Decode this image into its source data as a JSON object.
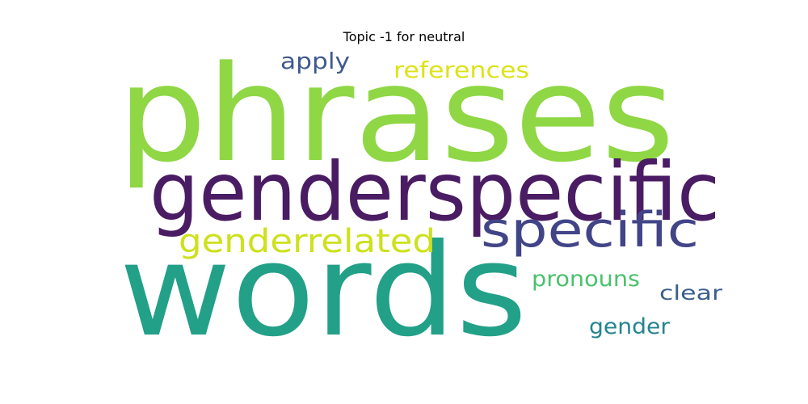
{
  "title": "Topic -1 for neutral",
  "words": [
    {
      "text": "phrases",
      "color": "#8fd744"
    },
    {
      "text": "genderspecific",
      "color": "#4a1c63"
    },
    {
      "text": "words",
      "color": "#22a088"
    },
    {
      "text": "specific",
      "color": "#414487"
    },
    {
      "text": "genderrelated",
      "color": "#cde11d"
    },
    {
      "text": "apply",
      "color": "#3f5a8e"
    },
    {
      "text": "references",
      "color": "#dde318"
    },
    {
      "text": "pronouns",
      "color": "#4ac16d"
    },
    {
      "text": "clear",
      "color": "#3b5e8c"
    },
    {
      "text": "gender",
      "color": "#25858e"
    }
  ]
}
